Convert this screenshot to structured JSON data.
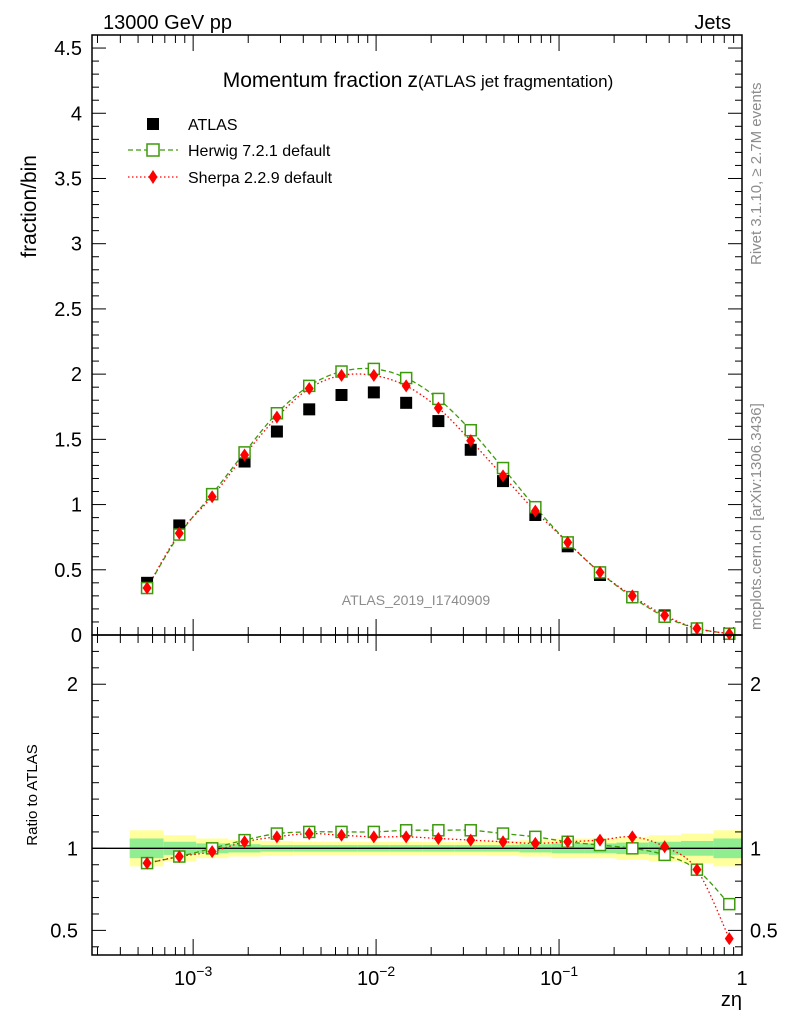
{
  "header": {
    "energy_label": "13000 GeV pp",
    "process_label": "Jets",
    "rivet_label": "Rivet 3.1.10, ≥ 2.7M events",
    "site_label": "mcplots.cern.ch [arXiv:1306.3436]"
  },
  "colors": {
    "atlas": "#000000",
    "herwig": "#3d9a0c",
    "sherpa": "#ff0000",
    "band_inner": "#90ee90",
    "band_outer": "#ffff9e"
  },
  "chart_data": [
    {
      "type": "scatter",
      "title": "Momentum fraction",
      "title_symbol": "z",
      "title_suffix": "(ATLAS jet fragmentation)",
      "ylabel": "fraction/bin",
      "analysis_label": "ATLAS_2019_I1740909",
      "xscale": "log",
      "xlim": [
        0.00028,
        1.0
      ],
      "ylim": [
        0,
        4.6
      ],
      "yticks": [
        {
          "v": 0,
          "label": "0"
        },
        {
          "v": 0.5,
          "label": "0.5"
        },
        {
          "v": 1,
          "label": "1"
        },
        {
          "v": 1.5,
          "label": "1.5"
        },
        {
          "v": 2,
          "label": "2"
        },
        {
          "v": 2.5,
          "label": "2.5"
        },
        {
          "v": 3,
          "label": "3"
        },
        {
          "v": 3.5,
          "label": "3.5"
        },
        {
          "v": 4,
          "label": "4"
        },
        {
          "v": 4.5,
          "label": "4.5"
        }
      ],
      "legend_position": "top-left",
      "x": [
        0.00056,
        0.00084,
        0.00127,
        0.00191,
        0.00287,
        0.00431,
        0.00647,
        0.00972,
        0.0146,
        0.0219,
        0.0329,
        0.0494,
        0.0742,
        0.1115,
        0.1674,
        0.2515,
        0.3777,
        0.5672,
        0.852
      ],
      "series": [
        {
          "name": "ATLAS",
          "style": "data",
          "values": [
            0.4,
            0.84,
            1.08,
            1.33,
            1.56,
            1.73,
            1.84,
            1.86,
            1.78,
            1.64,
            1.42,
            1.18,
            0.92,
            0.68,
            0.46,
            0.29,
            0.15,
            0.05,
            0.01
          ]
        },
        {
          "name": "Herwig 7.2.1 default",
          "style": "herwig",
          "values": [
            0.36,
            0.77,
            1.08,
            1.4,
            1.7,
            1.91,
            2.02,
            2.04,
            1.97,
            1.81,
            1.57,
            1.28,
            0.98,
            0.71,
            0.48,
            0.29,
            0.14,
            0.05,
            0.01
          ]
        },
        {
          "name": "Sherpa 2.2.9 default",
          "style": "sherpa",
          "values": [
            0.36,
            0.78,
            1.06,
            1.38,
            1.67,
            1.89,
            1.99,
            1.99,
            1.91,
            1.74,
            1.49,
            1.22,
            0.95,
            0.71,
            0.48,
            0.3,
            0.15,
            0.05,
            0.01
          ]
        }
      ]
    },
    {
      "type": "scatter",
      "ylabel": "Ratio to ATLAS",
      "xlabel": "zη",
      "xscale": "log",
      "xlim": [
        0.00028,
        1.0
      ],
      "ylim": [
        0.35,
        2.3
      ],
      "yticks": [
        {
          "v": 0.5,
          "label": "0.5"
        },
        {
          "v": 1,
          "label": "1"
        },
        {
          "v": 2,
          "label": "2"
        }
      ],
      "xticks": [
        {
          "v": 0.001,
          "base": "10",
          "exp": "−3"
        },
        {
          "v": 0.01,
          "base": "10",
          "exp": "−2"
        },
        {
          "v": 0.1,
          "base": "10",
          "exp": "−1"
        },
        {
          "v": 1,
          "base": "1",
          "exp": ""
        }
      ],
      "band": {
        "x_edges": [
          0.00045,
          0.00069,
          0.00104,
          0.00156,
          0.00234,
          0.00352,
          0.00529,
          0.00795,
          0.0119,
          0.0179,
          0.0269,
          0.0404,
          0.0607,
          0.0912,
          0.137,
          0.206,
          0.309,
          0.464,
          0.698,
          1.0
        ],
        "inner": [
          0.06,
          0.04,
          0.03,
          0.025,
          0.02,
          0.02,
          0.02,
          0.02,
          0.02,
          0.02,
          0.02,
          0.02,
          0.025,
          0.03,
          0.03,
          0.035,
          0.04,
          0.045,
          0.06
        ],
        "outer": [
          0.11,
          0.08,
          0.06,
          0.05,
          0.045,
          0.04,
          0.04,
          0.04,
          0.04,
          0.04,
          0.04,
          0.045,
          0.05,
          0.06,
          0.06,
          0.07,
          0.08,
          0.09,
          0.11
        ]
      },
      "x": [
        0.00056,
        0.00084,
        0.00127,
        0.00191,
        0.00287,
        0.00431,
        0.00647,
        0.00972,
        0.0146,
        0.0219,
        0.0329,
        0.0494,
        0.0742,
        0.1115,
        0.1674,
        0.2515,
        0.3777,
        0.5672,
        0.852
      ],
      "series": [
        {
          "name": "ATLAS",
          "style": "reference",
          "values": [
            1,
            1,
            1,
            1,
            1,
            1,
            1,
            1,
            1,
            1,
            1,
            1,
            1,
            1,
            1,
            1,
            1,
            1,
            1
          ]
        },
        {
          "name": "Herwig 7.2.1 default",
          "style": "herwig",
          "values": [
            0.91,
            0.95,
            1.0,
            1.05,
            1.09,
            1.1,
            1.1,
            1.1,
            1.11,
            1.11,
            1.11,
            1.09,
            1.07,
            1.04,
            1.02,
            1.0,
            0.96,
            0.87,
            0.66
          ]
        },
        {
          "name": "Sherpa 2.2.9 default",
          "style": "sherpa",
          "values": [
            0.91,
            0.95,
            0.98,
            1.04,
            1.07,
            1.09,
            1.08,
            1.07,
            1.07,
            1.06,
            1.05,
            1.04,
            1.03,
            1.04,
            1.05,
            1.07,
            1.01,
            0.87,
            0.45
          ]
        }
      ]
    }
  ]
}
